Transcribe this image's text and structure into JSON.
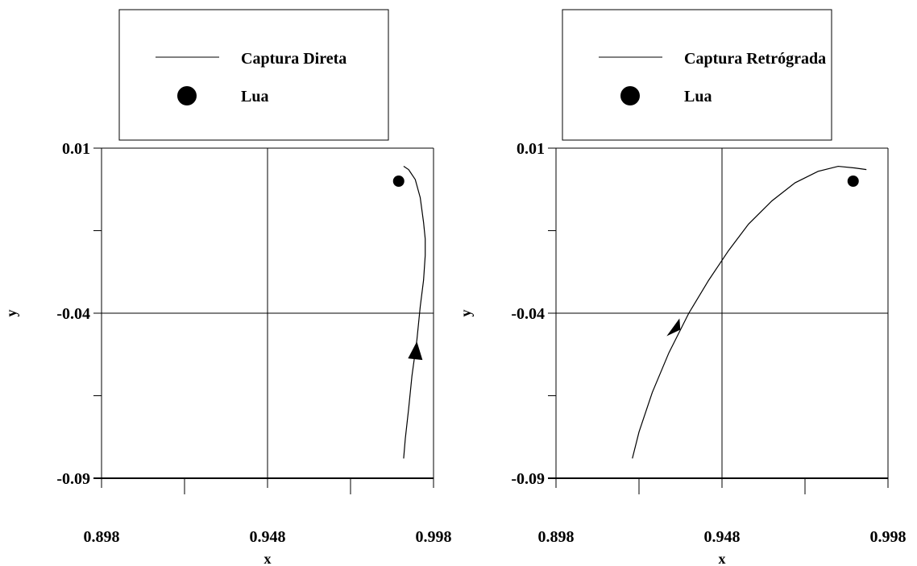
{
  "chart_data": [
    {
      "type": "line",
      "xlabel": "x",
      "ylabel": "y",
      "xlim": [
        0.898,
        0.998
      ],
      "ylim": [
        -0.09,
        0.01
      ],
      "xticks": [
        0.898,
        0.948,
        0.998
      ],
      "yticks": [
        0.01,
        -0.04,
        -0.09
      ],
      "xtick_labels": [
        "0.898",
        "0.948",
        "0.998"
      ],
      "ytick_labels": [
        "0.01",
        "-0.04",
        "-0.09"
      ],
      "grid": true,
      "legend_position": "top",
      "series": [
        {
          "name": "Captura Direta",
          "kind": "line",
          "color": "#000000",
          "x": [
            0.989,
            0.9905,
            0.9925,
            0.994,
            0.995,
            0.9955,
            0.9955,
            0.995,
            0.994,
            0.993,
            0.9915,
            0.9905,
            0.9895,
            0.989
          ],
          "y": [
            0.0045,
            0.0035,
            0.0005,
            -0.005,
            -0.0125,
            -0.0175,
            -0.0225,
            -0.03,
            -0.038,
            -0.048,
            -0.059,
            -0.069,
            -0.078,
            -0.084
          ]
        },
        {
          "name": "Lua",
          "kind": "point",
          "color": "#000000",
          "x": [
            0.9875
          ],
          "y": [
            0.0
          ]
        }
      ],
      "annotations": [
        {
          "kind": "arrow",
          "x": 0.9925,
          "y": -0.0515,
          "direction": "up"
        }
      ]
    },
    {
      "type": "line",
      "xlabel": "x",
      "ylabel": "y",
      "xlim": [
        0.898,
        0.998
      ],
      "ylim": [
        -0.09,
        0.01
      ],
      "xticks": [
        0.898,
        0.948,
        0.998
      ],
      "yticks": [
        0.01,
        -0.04,
        -0.09
      ],
      "xtick_labels": [
        "0.898",
        "0.948",
        "0.998"
      ],
      "ytick_labels": [
        "0.01",
        "-0.04",
        "-0.09"
      ],
      "grid": true,
      "legend_position": "top",
      "series": [
        {
          "name": "Captura Retrógrada",
          "kind": "line",
          "color": "#000000",
          "x": [
            0.921,
            0.923,
            0.927,
            0.932,
            0.938,
            0.944,
            0.95,
            0.956,
            0.963,
            0.97,
            0.977,
            0.983,
            0.988,
            0.9915
          ],
          "y": [
            -0.084,
            -0.076,
            -0.064,
            -0.052,
            -0.04,
            -0.03,
            -0.021,
            -0.013,
            -0.006,
            -0.0005,
            0.003,
            0.0045,
            0.004,
            0.0035
          ]
        },
        {
          "name": "Lua",
          "kind": "point",
          "color": "#000000",
          "x": [
            0.9875
          ],
          "y": [
            0.0
          ]
        }
      ],
      "annotations": [
        {
          "kind": "arrow",
          "x": 0.9335,
          "y": -0.0445,
          "direction": "up-right"
        }
      ]
    }
  ]
}
